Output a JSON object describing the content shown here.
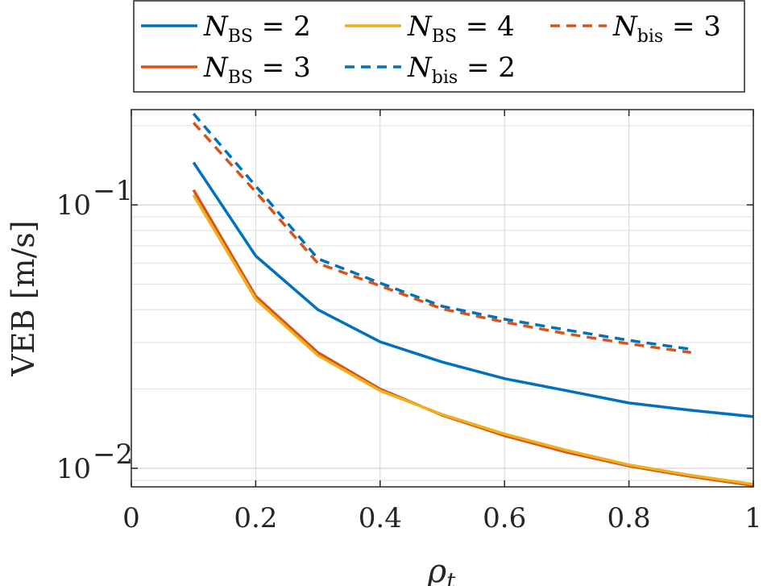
{
  "chart_data": {
    "type": "line",
    "xlabel": "ρ",
    "xlabel_sub": "t",
    "ylabel": "VEB [m/s]",
    "xlim": [
      0,
      1
    ],
    "ylim": [
      0.0085,
      0.23
    ],
    "yscale": "log",
    "grid": true,
    "legend_position": "top",
    "x_ticks": [
      {
        "value": 0,
        "label": "0"
      },
      {
        "value": 0.2,
        "label": "0.2"
      },
      {
        "value": 0.4,
        "label": "0.4"
      },
      {
        "value": 0.6,
        "label": "0.6"
      },
      {
        "value": 0.8,
        "label": "0.8"
      },
      {
        "value": 1,
        "label": "1"
      }
    ],
    "y_ticks": [
      {
        "value": 0.01,
        "base": "10",
        "exp": "−2"
      },
      {
        "value": 0.1,
        "base": "10",
        "exp": "−1"
      }
    ],
    "series": [
      {
        "name_main": "N",
        "name_sub": "BS",
        "name_rest": " = 2",
        "color": "#0072BD",
        "dash": "solid",
        "x": [
          0.1,
          0.2,
          0.3,
          0.4,
          0.5,
          0.6,
          0.7,
          0.8,
          0.9,
          1.0
        ],
        "y": [
          0.145,
          0.064,
          0.04,
          0.0302,
          0.0253,
          0.0219,
          0.0197,
          0.0177,
          0.0166,
          0.0157
        ]
      },
      {
        "name_main": "N",
        "name_sub": "BS",
        "name_rest": " = 3",
        "color": "#D95319",
        "dash": "solid",
        "x": [
          0.1,
          0.2,
          0.3,
          0.4,
          0.5,
          0.6,
          0.7,
          0.8,
          0.9,
          1.0
        ],
        "y": [
          0.114,
          0.045,
          0.0275,
          0.02,
          0.0159,
          0.0133,
          0.0115,
          0.0102,
          0.0093,
          0.0086
        ]
      },
      {
        "name_main": "N",
        "name_sub": "BS",
        "name_rest": " = 4",
        "color": "#EDB120",
        "dash": "solid",
        "x": [
          0.1,
          0.2,
          0.3,
          0.4,
          0.5,
          0.6,
          0.7,
          0.8,
          0.9,
          1.0
        ],
        "y": [
          0.109,
          0.0438,
          0.0268,
          0.0197,
          0.016,
          0.0135,
          0.0117,
          0.0103,
          0.0094,
          0.0087
        ]
      },
      {
        "name_main": "N",
        "name_sub": "bis",
        "name_rest": " = 2",
        "color": "#0072BD",
        "dash": "dashed",
        "x": [
          0.1,
          0.2,
          0.3,
          0.4,
          0.5,
          0.6,
          0.7,
          0.8,
          0.9
        ],
        "y": [
          0.222,
          0.118,
          0.0625,
          0.0505,
          0.0412,
          0.0368,
          0.0335,
          0.0306,
          0.0283
        ]
      },
      {
        "name_main": "N",
        "name_sub": "bis",
        "name_rest": " = 3",
        "color": "#D95319",
        "dash": "dashed",
        "x": [
          0.1,
          0.2,
          0.3,
          0.4,
          0.5,
          0.6,
          0.7,
          0.8,
          0.9
        ],
        "y": [
          0.205,
          0.112,
          0.06,
          0.0493,
          0.0403,
          0.0359,
          0.0324,
          0.0297,
          0.0275
        ]
      }
    ]
  }
}
